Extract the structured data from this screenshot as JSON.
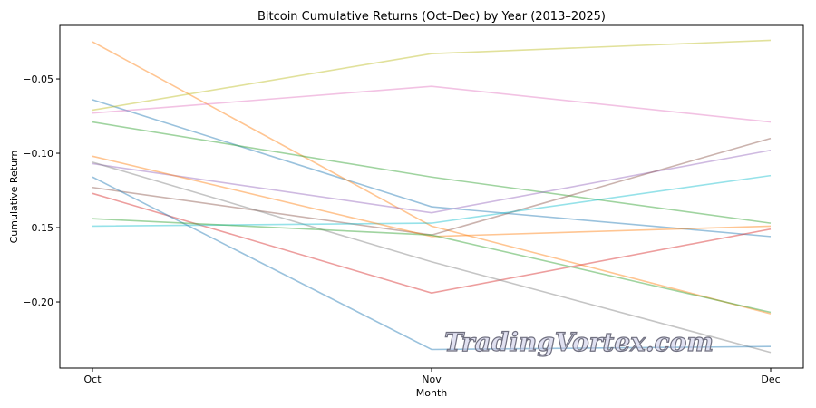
{
  "chart_data": {
    "type": "line",
    "title": "Bitcoin Cumulative Returns (Oct–Dec) by Year (2013–2025)",
    "xlabel": "Month",
    "ylabel": "Cumulative Return",
    "categories": [
      "Oct",
      "Nov",
      "Dec"
    ],
    "ylim": [
      -0.2445,
      -0.014
    ],
    "yticks": [
      -0.05,
      -0.1,
      -0.15,
      -0.2
    ],
    "ytick_labels": [
      "−0.05",
      "−0.10",
      "−0.15",
      "−0.20"
    ],
    "grid": false,
    "series": [
      {
        "values": [
          -0.064,
          -0.136,
          -0.156
        ],
        "color": "#1f77b4"
      },
      {
        "values": [
          -0.025,
          -0.149,
          -0.208
        ],
        "color": "#ff7f0e"
      },
      {
        "values": [
          -0.079,
          -0.116,
          -0.147
        ],
        "color": "#2ca02c"
      },
      {
        "values": [
          -0.127,
          -0.194,
          -0.151
        ],
        "color": "#d62728"
      },
      {
        "values": [
          -0.107,
          -0.14,
          -0.098
        ],
        "color": "#9467bd"
      },
      {
        "values": [
          -0.123,
          -0.155,
          -0.09
        ],
        "color": "#8c564b"
      },
      {
        "values": [
          -0.073,
          -0.055,
          -0.079
        ],
        "color": "#e377c2"
      },
      {
        "values": [
          -0.106,
          -0.173,
          -0.234
        ],
        "color": "#7f7f7f"
      },
      {
        "values": [
          -0.071,
          -0.033,
          -0.024
        ],
        "color": "#bcbd22"
      },
      {
        "values": [
          -0.149,
          -0.147,
          -0.115
        ],
        "color": "#17becf"
      },
      {
        "values": [
          -0.116,
          -0.232,
          -0.23
        ],
        "color": "#1f77b4"
      },
      {
        "values": [
          -0.102,
          -0.156,
          -0.149
        ],
        "color": "#ff7f0e"
      },
      {
        "values": [
          -0.144,
          -0.155,
          -0.207
        ],
        "color": "#2ca02c"
      }
    ],
    "line_alpha": 0.45
  },
  "watermark": "TradingVortex.com"
}
